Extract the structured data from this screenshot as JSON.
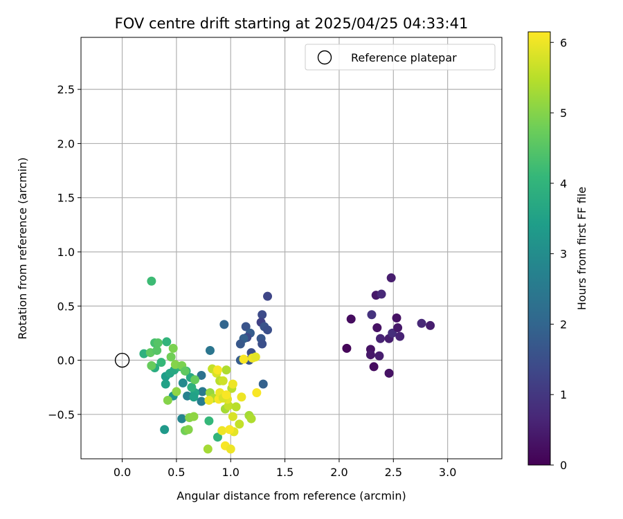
{
  "chart_data": {
    "type": "scatter",
    "title": "FOV centre drift starting at 2025/04/25 04:33:41",
    "xlabel": "Angular distance from reference (arcmin)",
    "ylabel": "Rotation from reference (arcmin)",
    "xlim": [
      -0.38,
      3.5
    ],
    "ylim": [
      -0.91,
      2.98
    ],
    "xticks": [
      0.0,
      0.5,
      1.0,
      1.5,
      2.0,
      2.5,
      3.0
    ],
    "xtick_labels": [
      "0.0",
      "0.5",
      "1.0",
      "1.5",
      "2.0",
      "2.5",
      "3.0"
    ],
    "yticks": [
      -0.5,
      0.0,
      0.5,
      1.0,
      1.5,
      2.0,
      2.5
    ],
    "ytick_labels": [
      "−0.5",
      "0.0",
      "0.5",
      "1.0",
      "1.5",
      "2.0",
      "2.5"
    ],
    "grid": true,
    "legend": {
      "position": "top-right",
      "entries": [
        {
          "label": "Reference platepar",
          "marker": "open-circle"
        }
      ]
    },
    "reference_point": {
      "x": 0.0,
      "y": 0.0
    },
    "colorbar": {
      "label": "Hours from first FF file",
      "colormap": "viridis",
      "range": [
        0,
        6.15
      ],
      "ticks": [
        0,
        1,
        2,
        3,
        4,
        5,
        6
      ],
      "tick_labels": [
        "0",
        "1",
        "2",
        "3",
        "4",
        "5",
        "6"
      ]
    },
    "colormap_stops": [
      "#440154",
      "#482878",
      "#3e4989",
      "#31688e",
      "#26828e",
      "#1f9e89",
      "#35b779",
      "#6ece58",
      "#b5de2b",
      "#fde725"
    ],
    "points": [
      {
        "x": 2.07,
        "y": 0.11,
        "c": 0.1
      },
      {
        "x": 2.11,
        "y": 0.38,
        "c": 0.2
      },
      {
        "x": 2.29,
        "y": 0.1,
        "c": 0.3
      },
      {
        "x": 2.29,
        "y": 0.05,
        "c": 0.4
      },
      {
        "x": 2.32,
        "y": -0.06,
        "c": 0.2
      },
      {
        "x": 2.35,
        "y": 0.3,
        "c": 0.3
      },
      {
        "x": 2.37,
        "y": 0.04,
        "c": 0.5
      },
      {
        "x": 2.38,
        "y": 0.2,
        "c": 0.6
      },
      {
        "x": 2.34,
        "y": 0.6,
        "c": 0.4
      },
      {
        "x": 2.39,
        "y": 0.61,
        "c": 0.7
      },
      {
        "x": 2.46,
        "y": 0.2,
        "c": 0.5
      },
      {
        "x": 2.46,
        "y": -0.12,
        "c": 0.3
      },
      {
        "x": 2.48,
        "y": 0.76,
        "c": 0.5
      },
      {
        "x": 2.49,
        "y": 0.25,
        "c": 0.8
      },
      {
        "x": 2.53,
        "y": 0.39,
        "c": 0.3
      },
      {
        "x": 2.54,
        "y": 0.3,
        "c": 0.4
      },
      {
        "x": 2.56,
        "y": 0.22,
        "c": 0.6
      },
      {
        "x": 2.3,
        "y": 0.42,
        "c": 0.9
      },
      {
        "x": 2.76,
        "y": 0.34,
        "c": 0.7
      },
      {
        "x": 2.84,
        "y": 0.32,
        "c": 0.5
      },
      {
        "x": 1.34,
        "y": 0.59,
        "c": 1.3
      },
      {
        "x": 1.29,
        "y": 0.42,
        "c": 1.4
      },
      {
        "x": 1.28,
        "y": 0.35,
        "c": 1.2
      },
      {
        "x": 1.31,
        "y": 0.31,
        "c": 1.6
      },
      {
        "x": 1.34,
        "y": 0.28,
        "c": 1.5
      },
      {
        "x": 1.28,
        "y": 0.2,
        "c": 1.7
      },
      {
        "x": 1.29,
        "y": 0.15,
        "c": 1.5
      },
      {
        "x": 1.14,
        "y": 0.31,
        "c": 1.6
      },
      {
        "x": 1.18,
        "y": 0.25,
        "c": 1.8
      },
      {
        "x": 1.15,
        "y": 0.21,
        "c": 1.4
      },
      {
        "x": 1.12,
        "y": 0.2,
        "c": 1.9
      },
      {
        "x": 1.09,
        "y": 0.15,
        "c": 1.7
      },
      {
        "x": 1.19,
        "y": 0.07,
        "c": 1.5
      },
      {
        "x": 1.17,
        "y": 0.0,
        "c": 1.6
      },
      {
        "x": 1.09,
        "y": 0.0,
        "c": 1.8
      },
      {
        "x": 1.3,
        "y": -0.22,
        "c": 1.9
      },
      {
        "x": 0.94,
        "y": 0.33,
        "c": 2.0
      },
      {
        "x": 0.81,
        "y": 0.09,
        "c": 2.4
      },
      {
        "x": 0.73,
        "y": -0.14,
        "c": 2.3
      },
      {
        "x": 0.74,
        "y": -0.29,
        "c": 2.5
      },
      {
        "x": 0.73,
        "y": -0.38,
        "c": 2.6
      },
      {
        "x": 0.6,
        "y": -0.33,
        "c": 2.7
      },
      {
        "x": 0.56,
        "y": -0.21,
        "c": 2.9
      },
      {
        "x": 0.55,
        "y": -0.54,
        "c": 2.8
      },
      {
        "x": 0.47,
        "y": -0.33,
        "c": 3.2
      },
      {
        "x": 0.39,
        "y": -0.64,
        "c": 3.3
      },
      {
        "x": 0.4,
        "y": -0.22,
        "c": 3.5
      },
      {
        "x": 0.4,
        "y": -0.15,
        "c": 3.4
      },
      {
        "x": 0.44,
        "y": -0.12,
        "c": 3.6
      },
      {
        "x": 0.48,
        "y": -0.09,
        "c": 3.7
      },
      {
        "x": 0.3,
        "y": -0.07,
        "c": 3.8
      },
      {
        "x": 0.2,
        "y": 0.06,
        "c": 3.9
      },
      {
        "x": 0.41,
        "y": 0.17,
        "c": 4.0
      },
      {
        "x": 0.36,
        "y": -0.02,
        "c": 4.1
      },
      {
        "x": 0.53,
        "y": -0.06,
        "c": 4.0
      },
      {
        "x": 0.59,
        "y": -0.1,
        "c": 3.8
      },
      {
        "x": 0.63,
        "y": -0.16,
        "c": 3.7
      },
      {
        "x": 0.67,
        "y": -0.3,
        "c": 3.6
      },
      {
        "x": 0.66,
        "y": -0.34,
        "c": 3.5
      },
      {
        "x": 0.64,
        "y": -0.25,
        "c": 3.9
      },
      {
        "x": 0.27,
        "y": 0.73,
        "c": 4.2
      },
      {
        "x": 0.3,
        "y": 0.16,
        "c": 4.3
      },
      {
        "x": 0.33,
        "y": 0.16,
        "c": 4.5
      },
      {
        "x": 0.26,
        "y": 0.07,
        "c": 4.6
      },
      {
        "x": 0.32,
        "y": 0.09,
        "c": 4.5
      },
      {
        "x": 0.27,
        "y": -0.05,
        "c": 4.7
      },
      {
        "x": 0.45,
        "y": 0.03,
        "c": 4.8
      },
      {
        "x": 0.47,
        "y": 0.11,
        "c": 4.9
      },
      {
        "x": 0.49,
        "y": -0.04,
        "c": 5.0
      },
      {
        "x": 0.55,
        "y": -0.05,
        "c": 4.9
      },
      {
        "x": 0.58,
        "y": -0.1,
        "c": 4.6
      },
      {
        "x": 0.67,
        "y": -0.18,
        "c": 4.7
      },
      {
        "x": 0.42,
        "y": -0.37,
        "c": 5.0
      },
      {
        "x": 0.5,
        "y": -0.29,
        "c": 5.1
      },
      {
        "x": 0.62,
        "y": -0.53,
        "c": 5.0
      },
      {
        "x": 0.66,
        "y": -0.52,
        "c": 5.1
      },
      {
        "x": 0.58,
        "y": -0.65,
        "c": 4.8
      },
      {
        "x": 0.61,
        "y": -0.64,
        "c": 5.0
      },
      {
        "x": 0.8,
        "y": -0.56,
        "c": 4.1
      },
      {
        "x": 0.88,
        "y": -0.71,
        "c": 4.0
      },
      {
        "x": 0.79,
        "y": -0.82,
        "c": 5.3
      },
      {
        "x": 0.81,
        "y": -0.3,
        "c": 5.2
      },
      {
        "x": 0.84,
        "y": -0.35,
        "c": 5.4
      },
      {
        "x": 0.83,
        "y": -0.08,
        "c": 5.6
      },
      {
        "x": 0.87,
        "y": -0.12,
        "c": 5.8
      },
      {
        "x": 0.9,
        "y": -0.19,
        "c": 5.5
      },
      {
        "x": 0.93,
        "y": -0.19,
        "c": 5.7
      },
      {
        "x": 0.96,
        "y": -0.09,
        "c": 5.4
      },
      {
        "x": 0.95,
        "y": -0.45,
        "c": 5.3
      },
      {
        "x": 0.98,
        "y": -0.42,
        "c": 5.6
      },
      {
        "x": 0.97,
        "y": -0.36,
        "c": 5.9
      },
      {
        "x": 1.01,
        "y": -0.26,
        "c": 5.5
      },
      {
        "x": 1.02,
        "y": -0.22,
        "c": 6.0
      },
      {
        "x": 1.02,
        "y": -0.52,
        "c": 5.8
      },
      {
        "x": 1.05,
        "y": -0.43,
        "c": 5.5
      },
      {
        "x": 1.08,
        "y": -0.59,
        "c": 5.6
      },
      {
        "x": 1.17,
        "y": -0.51,
        "c": 5.3
      },
      {
        "x": 1.19,
        "y": -0.54,
        "c": 5.4
      },
      {
        "x": 1.1,
        "y": -0.34,
        "c": 6.0
      },
      {
        "x": 1.12,
        "y": 0.01,
        "c": 6.1
      },
      {
        "x": 1.2,
        "y": 0.02,
        "c": 6.0
      },
      {
        "x": 1.23,
        "y": 0.03,
        "c": 5.9
      },
      {
        "x": 1.24,
        "y": -0.3,
        "c": 6.1
      },
      {
        "x": 0.92,
        "y": -0.65,
        "c": 6.0
      },
      {
        "x": 0.95,
        "y": -0.79,
        "c": 6.1
      },
      {
        "x": 1.0,
        "y": -0.82,
        "c": 6.0
      },
      {
        "x": 1.03,
        "y": -0.66,
        "c": 5.9
      },
      {
        "x": 0.99,
        "y": -0.64,
        "c": 6.1
      },
      {
        "x": 0.89,
        "y": -0.36,
        "c": 6.1
      },
      {
        "x": 0.9,
        "y": -0.3,
        "c": 6.0
      },
      {
        "x": 0.93,
        "y": -0.35,
        "c": 5.8
      },
      {
        "x": 0.96,
        "y": -0.32,
        "c": 6.1
      },
      {
        "x": 0.8,
        "y": -0.37,
        "c": 6.0
      },
      {
        "x": 0.88,
        "y": -0.09,
        "c": 6.1
      }
    ]
  }
}
